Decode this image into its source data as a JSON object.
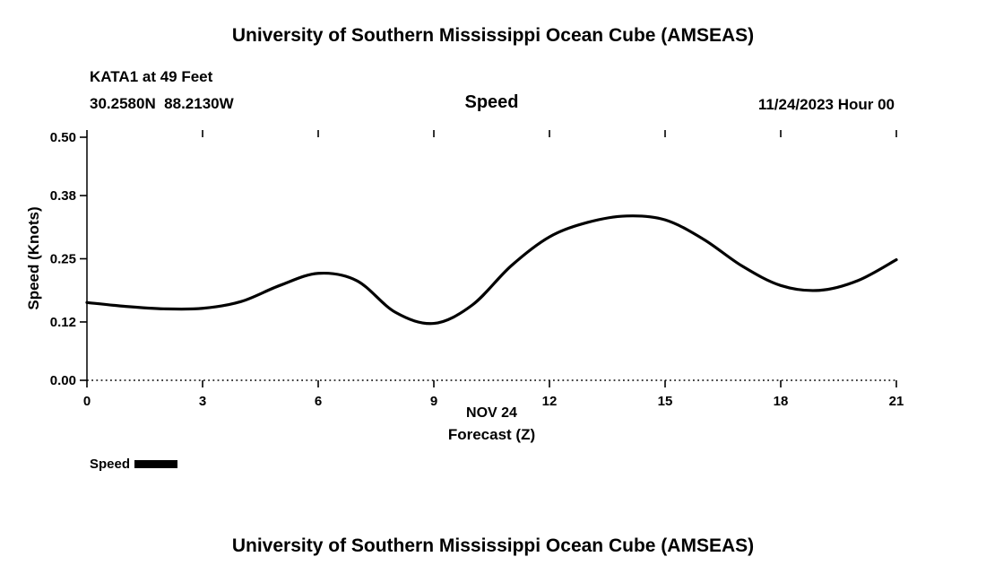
{
  "page": {
    "background": "#ffffff"
  },
  "header": {
    "title": "University of Southern Mississippi Ocean Cube (AMSEAS)",
    "station_line1": "KATA1 at 49 Feet",
    "station_line2": "30.2580N  88.2130W",
    "subtitle": "Speed",
    "date_label": "11/24/2023 Hour 00"
  },
  "chart_data": {
    "type": "line",
    "title": "University of Southern Mississippi Ocean Cube (AMSEAS)",
    "subtitle": "Speed",
    "xlabel_line1": "NOV 24",
    "xlabel_line2": "Forecast (Z)",
    "ylabel": "Speed (Knots)",
    "xlim": [
      0,
      21
    ],
    "ylim": [
      0,
      0.5
    ],
    "x_ticks": [
      0,
      3,
      6,
      9,
      12,
      15,
      18,
      21
    ],
    "x_tick_labels": [
      "0",
      "3",
      "6",
      "9",
      "12",
      "15",
      "18",
      "21"
    ],
    "y_ticks": [
      0.0,
      0.12,
      0.25,
      0.38,
      0.5
    ],
    "y_tick_labels": [
      "0.00",
      "0.12",
      "0.25",
      "0.38",
      "0.50"
    ],
    "grid": "off",
    "legend_position": "bottom-left",
    "legend": [
      {
        "label": "Speed",
        "color": "#000000"
      }
    ],
    "line_color": "#000000",
    "line_width": 3.2,
    "series": [
      {
        "name": "Speed",
        "x": [
          0,
          1,
          2,
          3,
          4,
          5,
          6,
          7,
          8,
          9,
          10,
          11,
          12,
          13,
          14,
          15,
          16,
          17,
          18,
          19,
          20,
          21
        ],
        "values": [
          0.16,
          0.152,
          0.147,
          0.148,
          0.162,
          0.195,
          0.22,
          0.205,
          0.14,
          0.117,
          0.155,
          0.235,
          0.295,
          0.325,
          0.338,
          0.33,
          0.29,
          0.235,
          0.195,
          0.185,
          0.205,
          0.248
        ]
      }
    ]
  },
  "footer": {
    "title": "University of Southern Mississippi Ocean Cube (AMSEAS)"
  }
}
